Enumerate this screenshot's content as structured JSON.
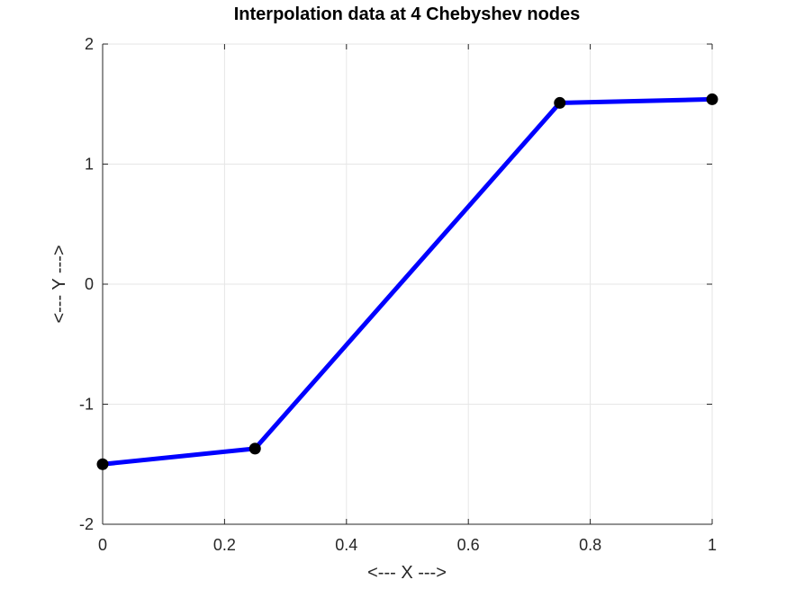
{
  "chart_data": {
    "type": "line",
    "title": "Interpolation data at 4 Chebyshev nodes",
    "xlabel": "<--- X --->",
    "ylabel": "<--- Y --->",
    "xlim": [
      0,
      1
    ],
    "ylim": [
      -2,
      2
    ],
    "xticks": [
      0,
      0.2,
      0.4,
      0.6,
      0.8,
      1
    ],
    "xtick_labels": [
      "0",
      "0.2",
      "0.4",
      "0.6",
      "0.8",
      "1"
    ],
    "yticks": [
      -2,
      -1,
      0,
      1,
      2
    ],
    "ytick_labels": [
      "-2",
      "-1",
      "0",
      "1",
      "2"
    ],
    "grid": true,
    "series": [
      {
        "x": [
          0,
          0.25,
          0.75,
          1
        ],
        "y": [
          -1.5,
          -1.37,
          1.51,
          1.54
        ],
        "line_color": "#0000ff",
        "marker": "circle",
        "marker_color": "#000000"
      }
    ]
  }
}
